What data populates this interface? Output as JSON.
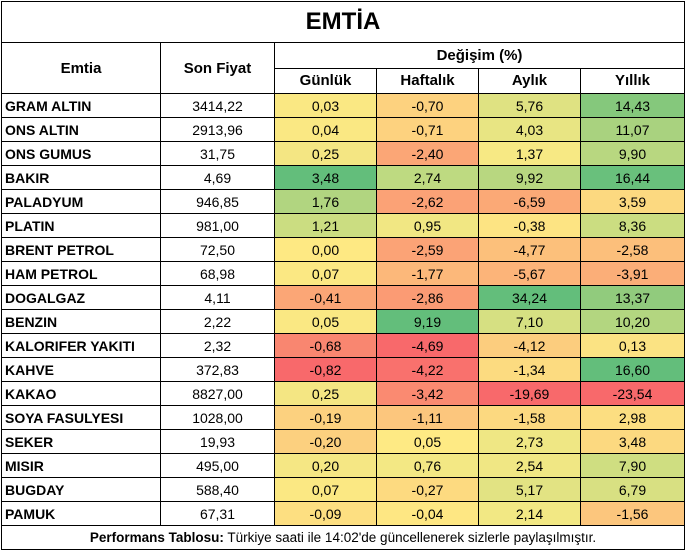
{
  "title": "EMTİA",
  "headers": {
    "emtia": "Emtia",
    "son_fiyat": "Son Fiyat",
    "degisim": "Değişim (%)",
    "gunluk": "Günlük",
    "haftalik": "Haftalık",
    "aylik": "Aylık",
    "yillik": "Yıllık"
  },
  "rows": [
    {
      "name": "GRAM ALTIN",
      "price": "3414,22",
      "values": [
        "0,03",
        "-0,70",
        "5,76",
        "14,43"
      ],
      "colors": [
        "#FAE883",
        "#FDD27F",
        "#DFE282",
        "#85C87C"
      ]
    },
    {
      "name": "ONS ALTIN",
      "price": "2913,96",
      "values": [
        "0,04",
        "-0,71",
        "4,03",
        "11,07"
      ],
      "colors": [
        "#FAE883",
        "#FDD27F",
        "#E8E583",
        "#A9D27F"
      ]
    },
    {
      "name": "ONS GUMUS",
      "price": "31,75",
      "values": [
        "0,25",
        "-2,40",
        "1,37",
        "9,90"
      ],
      "colors": [
        "#F4E683",
        "#FBA676",
        "#F7E984",
        "#B8D780"
      ]
    },
    {
      "name": "BAKIR",
      "price": "4,69",
      "values": [
        "3,48",
        "2,74",
        "9,92",
        "16,44"
      ],
      "colors": [
        "#63BE7B",
        "#BEDA81",
        "#B8D780",
        "#69C07C"
      ]
    },
    {
      "name": "PALADYUM",
      "price": "946,85",
      "values": [
        "1,76",
        "-2,62",
        "-6,59",
        "3,59"
      ],
      "colors": [
        "#B1D580",
        "#FBA276",
        "#FBA976",
        "#FCD980"
      ]
    },
    {
      "name": "PLATIN",
      "price": "981,00",
      "values": [
        "1,21",
        "0,95",
        "-0,38",
        "8,36"
      ],
      "colors": [
        "#CBDD81",
        "#F1E783",
        "#FDE483",
        "#CBDD81"
      ]
    },
    {
      "name": "BRENT PETROL",
      "price": "72,50",
      "values": [
        "0,00",
        "-2,59",
        "-4,77",
        "-2,58"
      ],
      "colors": [
        "#FEE983",
        "#FBA376",
        "#FCC07B",
        "#FCBF7B"
      ]
    },
    {
      "name": "HAM PETROL",
      "price": "68,98",
      "values": [
        "0,07",
        "-1,77",
        "-5,67",
        "-3,91"
      ],
      "colors": [
        "#FBE883",
        "#FCB87A",
        "#FCB479",
        "#FBAE78"
      ]
    },
    {
      "name": "DOGALGAZ",
      "price": "4,11",
      "values": [
        "-0,41",
        "-2,86",
        "34,24",
        "13,37"
      ],
      "colors": [
        "#FBA676",
        "#FB9B74",
        "#63BE7B",
        "#91CB7D"
      ]
    },
    {
      "name": "BENZIN",
      "price": "2,22",
      "values": [
        "0,05",
        "9,19",
        "7,10",
        "10,20"
      ],
      "colors": [
        "#FAE883",
        "#63BE7B",
        "#D6E082",
        "#B3D680"
      ]
    },
    {
      "name": "KALORIFER YAKITI",
      "price": "2,32",
      "values": [
        "-0,68",
        "-4,69",
        "-4,12",
        "0,13"
      ],
      "colors": [
        "#F98670",
        "#F8696B",
        "#FCCD7E",
        "#FBE383"
      ]
    },
    {
      "name": "KAHVE",
      "price": "372,83",
      "values": [
        "-0,82",
        "-4,22",
        "-1,34",
        "16,60"
      ],
      "colors": [
        "#F8696B",
        "#F9716D",
        "#FCDB80",
        "#63BE7B"
      ]
    },
    {
      "name": "KAKAO",
      "price": "8827,00",
      "values": [
        "0,25",
        "-3,42",
        "-19,69",
        "-23,54"
      ],
      "colors": [
        "#F4E683",
        "#FA8A71",
        "#F8696B",
        "#F8696B"
      ]
    },
    {
      "name": "SOYA FASULYESI",
      "price": "1028,00",
      "values": [
        "-0,19",
        "-1,11",
        "-1,58",
        "2,98"
      ],
      "colors": [
        "#FCD17F",
        "#FCC67D",
        "#FCD980",
        "#FCDE81"
      ]
    },
    {
      "name": "SEKER",
      "price": "19,93",
      "values": [
        "-0,20",
        "0,05",
        "2,73",
        "3,48"
      ],
      "colors": [
        "#FCD07F",
        "#FEEA84",
        "#EFE784",
        "#FCD980"
      ]
    },
    {
      "name": "MISIR",
      "price": "495,00",
      "values": [
        "0,20",
        "0,76",
        "2,54",
        "7,90"
      ],
      "colors": [
        "#F5E784",
        "#F3E884",
        "#F0E784",
        "#CFDE81"
      ]
    },
    {
      "name": "BUGDAY",
      "price": "588,40",
      "values": [
        "0,07",
        "-0,27",
        "5,17",
        "6,79"
      ],
      "colors": [
        "#FBE883",
        "#FDDA80",
        "#E2E383",
        "#D8E082"
      ]
    },
    {
      "name": "PAMUK",
      "price": "67,31",
      "values": [
        "-0,09",
        "-0,04",
        "2,14",
        "-1,56"
      ],
      "colors": [
        "#FDDF81",
        "#FEE783",
        "#F2E884",
        "#FCC67D"
      ]
    }
  ],
  "footer": {
    "bold": "Performans Tablosu:",
    "text": " Türkiye saati ile 14:02'de güncellenerek sizlerle paylaşılmıştır."
  }
}
